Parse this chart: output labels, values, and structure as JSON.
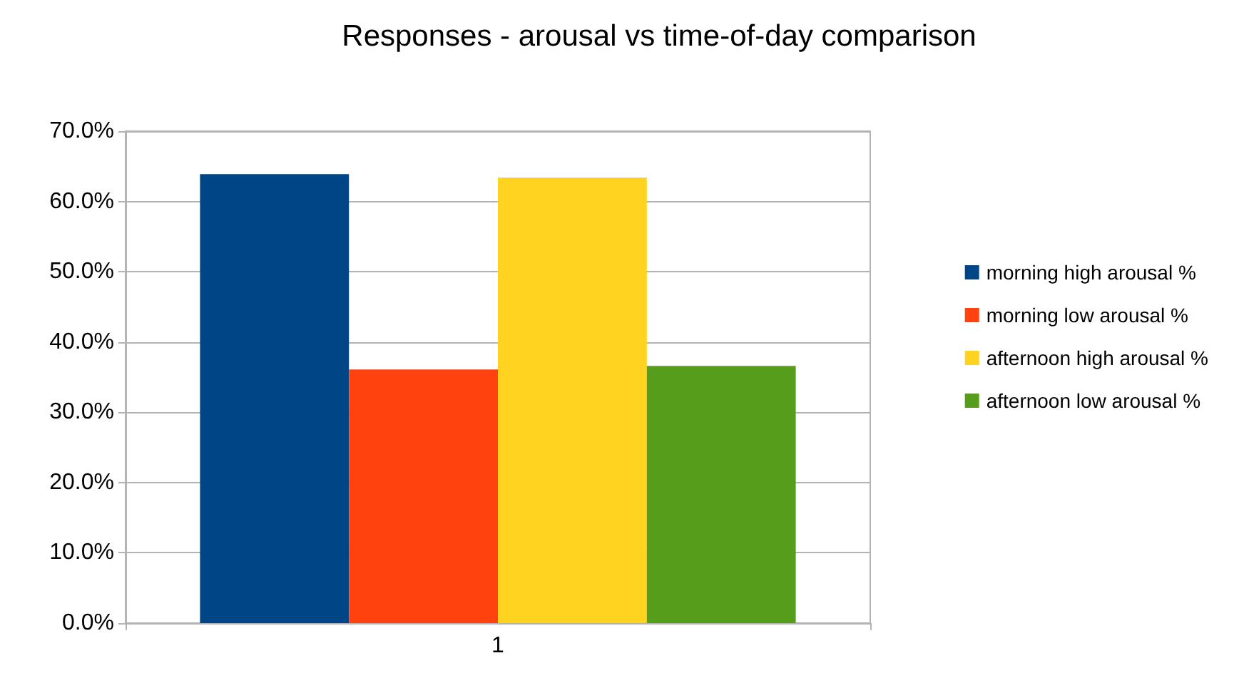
{
  "chart_data": {
    "type": "bar",
    "title": "Responses - arousal vs time-of-day comparison",
    "categories": [
      "1"
    ],
    "series": [
      {
        "name": "morning high arousal %",
        "color": "#004586",
        "values": [
          63.9
        ]
      },
      {
        "name": "morning low arousal %",
        "color": "#ff420e",
        "values": [
          36.1
        ]
      },
      {
        "name": "afternoon high arousal %",
        "color": "#ffd320",
        "values": [
          63.4
        ]
      },
      {
        "name": "afternoon low arousal %",
        "color": "#579d1c",
        "values": [
          36.6
        ]
      }
    ],
    "ylim": [
      0,
      70
    ],
    "yticks": [
      {
        "value": 0,
        "label": "0.0%"
      },
      {
        "value": 10,
        "label": "10.0%"
      },
      {
        "value": 20,
        "label": "20.0%"
      },
      {
        "value": 30,
        "label": "30.0%"
      },
      {
        "value": 40,
        "label": "40.0%"
      },
      {
        "value": 50,
        "label": "50.0%"
      },
      {
        "value": 60,
        "label": "60.0%"
      },
      {
        "value": 70,
        "label": "70.0%"
      }
    ],
    "grid": "y",
    "legend": "right"
  }
}
